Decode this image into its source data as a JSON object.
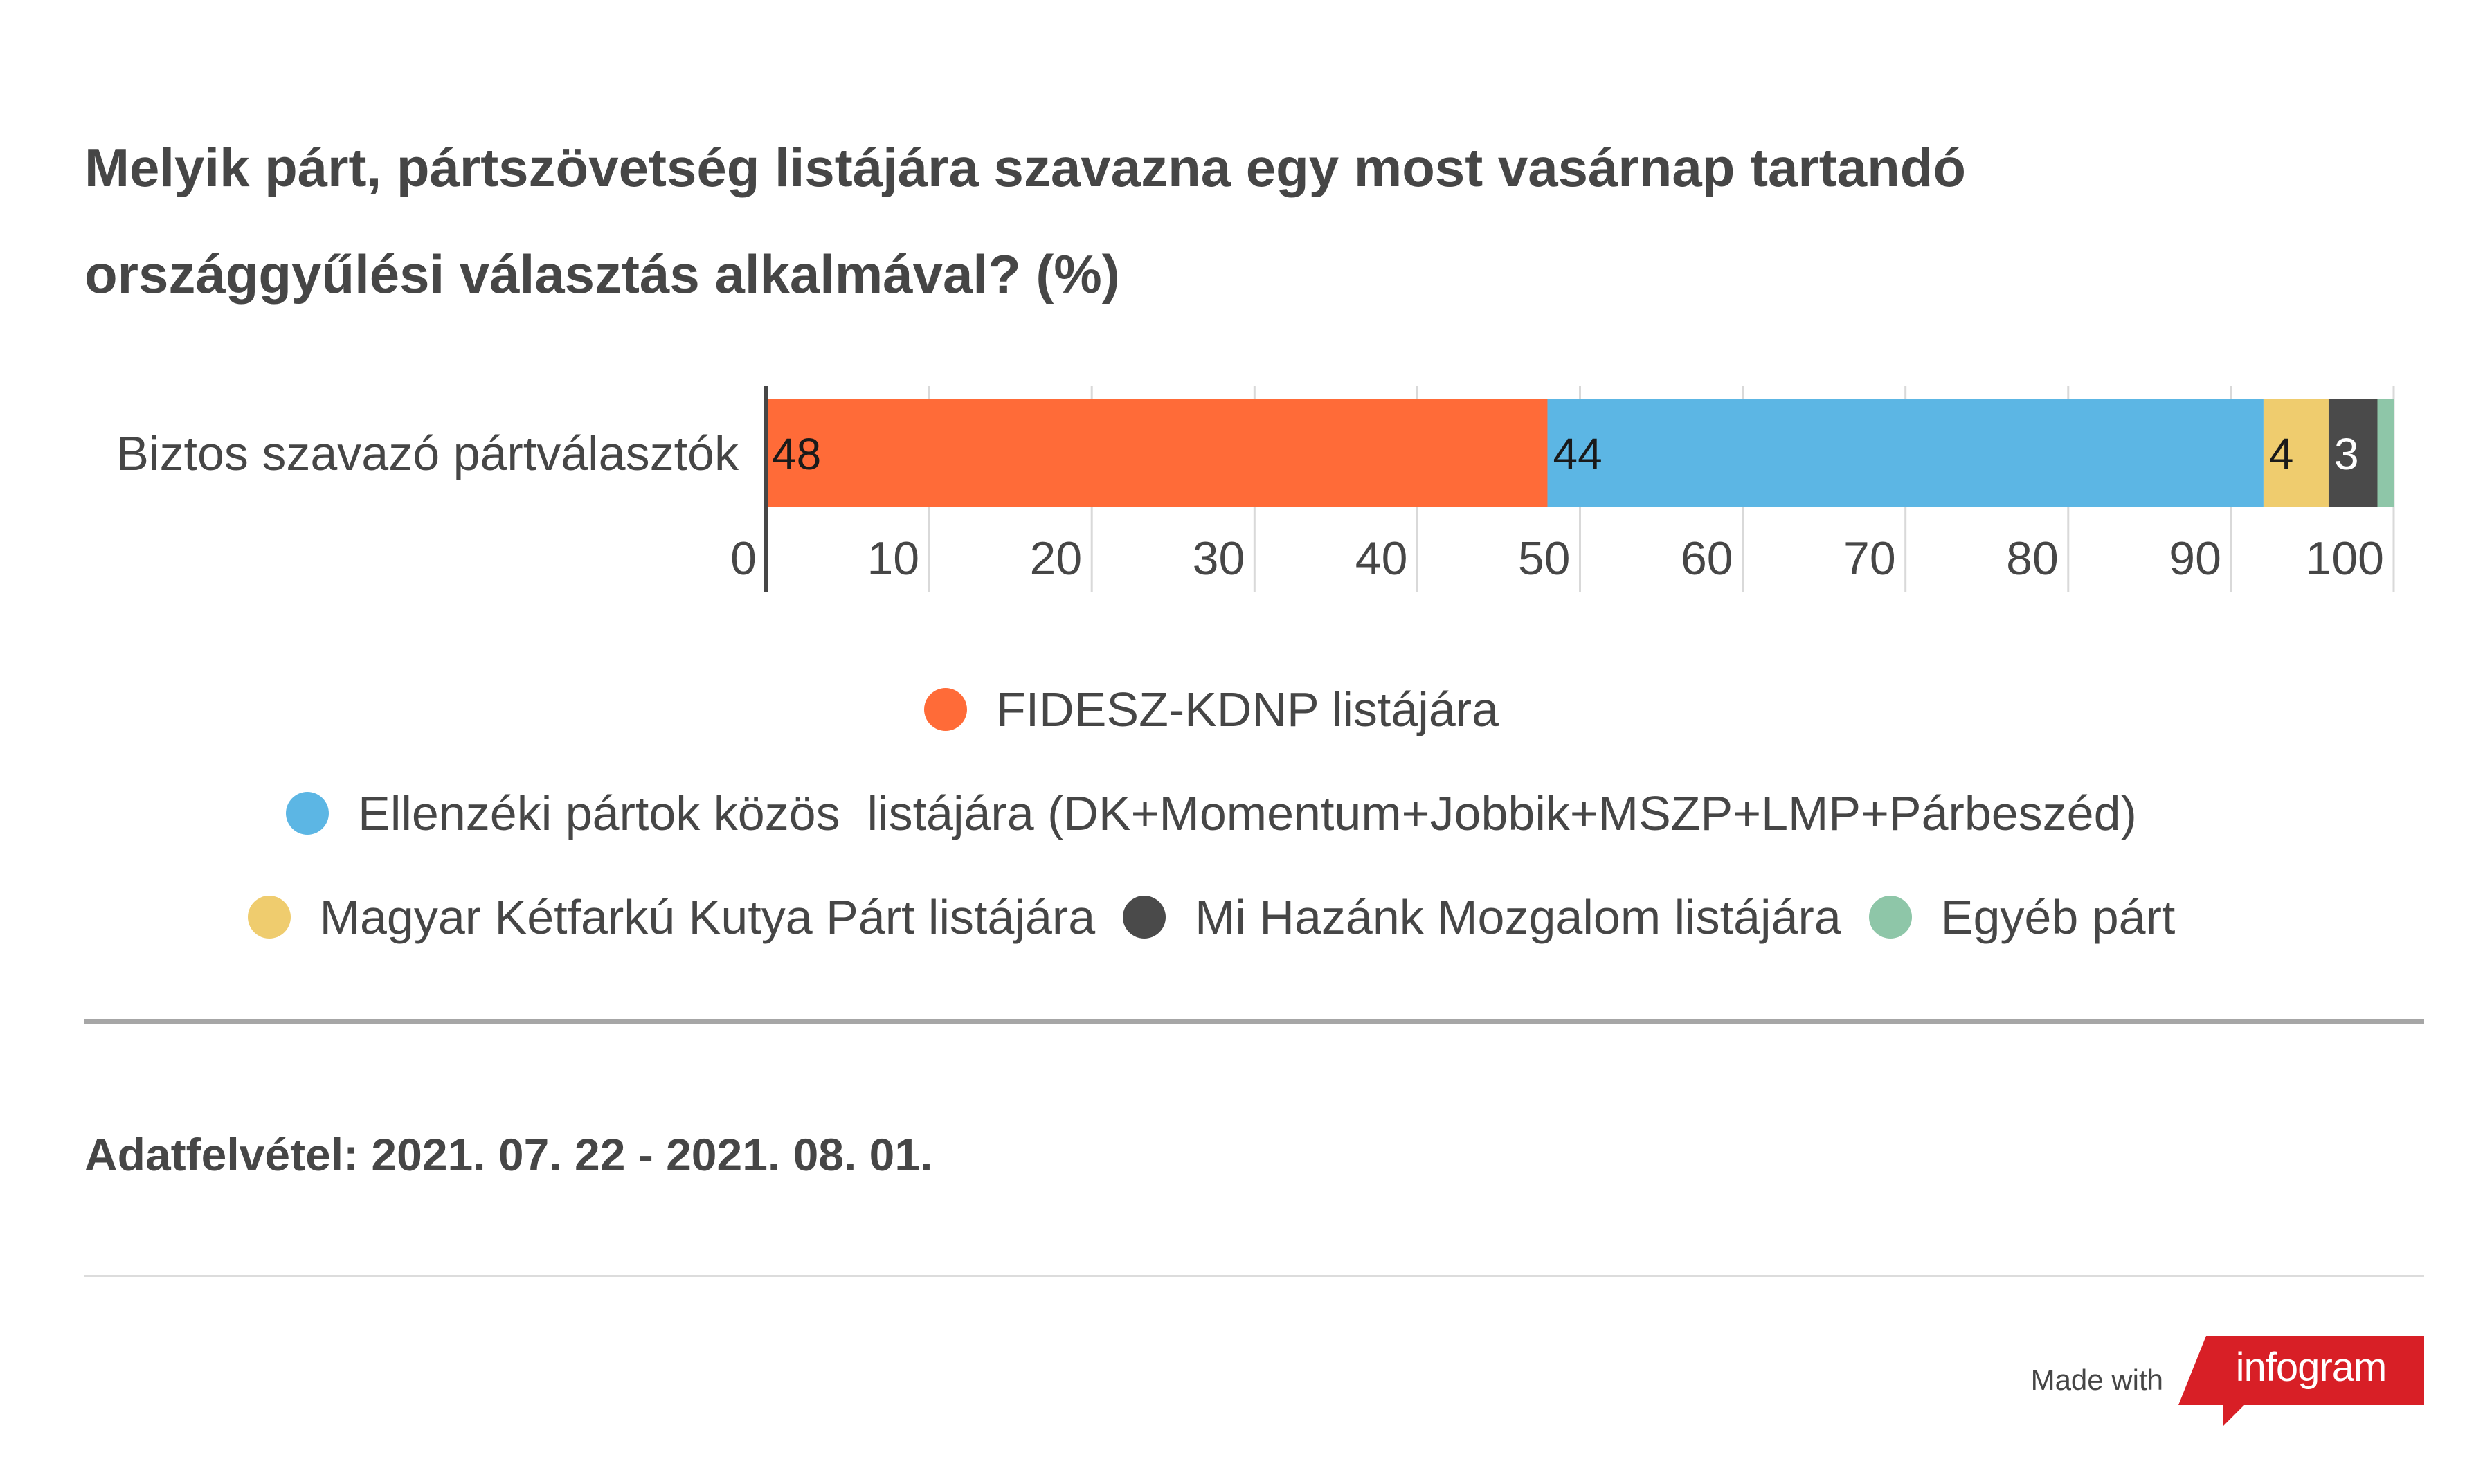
{
  "title_lines": [
    "Melyik párt, pártszövetség listájára szavazna egy most vasárnap tartandó",
    "országgyűlési választás alkalmával? (%)"
  ],
  "chart_data": {
    "type": "bar",
    "orientation": "horizontal",
    "stacked": true,
    "categories": [
      "Biztos szavazó pártválasztók"
    ],
    "series": [
      {
        "name": "FIDESZ-KDNP listájára",
        "values": [
          48
        ],
        "color": "#ff6b38",
        "label": "48",
        "label_color": "#1a1a1a"
      },
      {
        "name": "Ellenzéki pártok közös  listájára (DK+Momentum+Jobbik+MSZP+LMP+Párbeszéd)",
        "values": [
          44
        ],
        "color": "#5cb6e4",
        "label": "44",
        "label_color": "#1a1a1a"
      },
      {
        "name": "Magyar Kétfarkú Kutya Párt listájára",
        "values": [
          4
        ],
        "color": "#efcc6e",
        "label": "4",
        "label_color": "#1a1a1a"
      },
      {
        "name": "Mi Hazánk Mozgalom listájára",
        "values": [
          3
        ],
        "color": "#4a4a4a",
        "label": "3",
        "label_color": "#ffffff"
      },
      {
        "name": "Egyéb párt",
        "values": [
          1
        ],
        "color": "#8ec6a8",
        "label": "",
        "label_color": "#1a1a1a"
      }
    ],
    "xlim": [
      0,
      100
    ],
    "x_ticks": [
      "0",
      "10",
      "20",
      "30",
      "40",
      "50",
      "60",
      "70",
      "80",
      "90",
      "100"
    ],
    "grid": true,
    "legend_position": "bottom"
  },
  "footnote": "Adatfelvétel: 2021. 07. 22 - 2021. 08. 01.",
  "branding": {
    "made_with": "Made with",
    "logo_text": "infogram",
    "logo_color": "#d81f26"
  }
}
